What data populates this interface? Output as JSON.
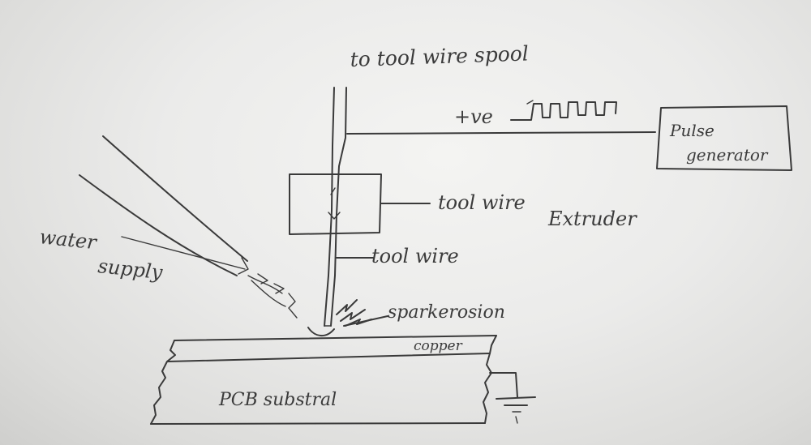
{
  "labels": {
    "to_spool": "to tool wire spool",
    "tve": "+ve",
    "pulse_generator_line1": "Pulse",
    "pulse_generator_line2": "generator",
    "tool_wire_extruder_line1": "tool wire",
    "tool_wire_extruder_line2": "Extruder",
    "tool_wire": "tool wire",
    "water_supply_line1": "water",
    "water_supply_line2": "supply",
    "spark_erosion": "sparkerosion",
    "copper": "copper",
    "pcb_substrate": "PCB substral"
  },
  "colors": {
    "paper": "#ecebe9",
    "ink": "#3a3a3a"
  }
}
